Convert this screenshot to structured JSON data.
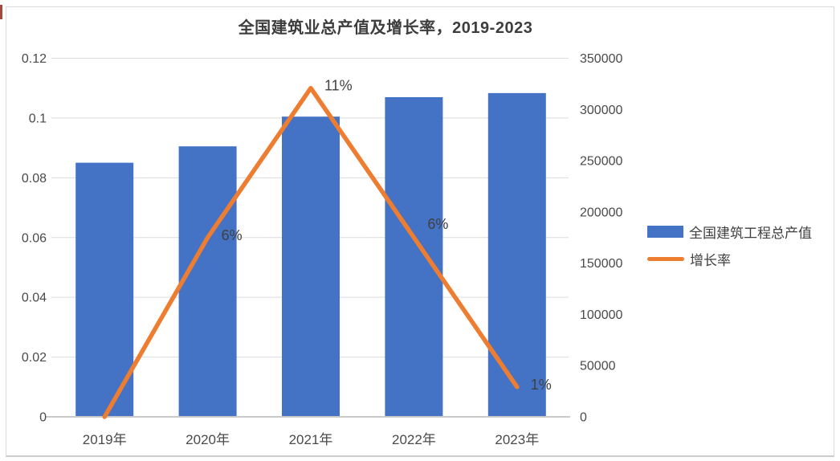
{
  "title": "全国建筑业总产值及增长率，2019-2023",
  "chart_data": {
    "type": "combo-bar-line",
    "categories": [
      "2019年",
      "2020年",
      "2021年",
      "2022年",
      "2023年"
    ],
    "series": [
      {
        "name": "全国建筑工程总产值",
        "chart_type": "bar",
        "axis": "right",
        "color": "#4472C4",
        "values": [
          248000,
          264000,
          293000,
          312000,
          316000
        ]
      },
      {
        "name": "增长率",
        "chart_type": "line",
        "axis": "left",
        "color": "#ED7D31",
        "values": [
          0,
          0.06,
          0.11,
          0.06,
          0.01
        ],
        "point_labels": [
          "",
          "6%",
          "11%",
          "6%",
          "1%"
        ]
      }
    ],
    "left_axis": {
      "min": 0,
      "max": 0.12,
      "step": 0.02,
      "ticks": [
        "0.12",
        "0.1",
        "0.08",
        "0.06",
        "0.04",
        "0.02",
        "0"
      ]
    },
    "right_axis": {
      "min": 0,
      "max": 350000,
      "step": 50000,
      "ticks": [
        "350000",
        "300000",
        "250000",
        "200000",
        "150000",
        "100000",
        "50000",
        "0"
      ]
    },
    "grid": true,
    "legend_position": "right"
  },
  "legend": {
    "items": [
      {
        "label": "全国建筑工程总产值",
        "color": "#4472C4",
        "swatch": "rect"
      },
      {
        "label": "增长率",
        "color": "#ED7D31",
        "swatch": "line"
      }
    ]
  },
  "colors": {
    "bar": "#4472C4",
    "line": "#ED7D31",
    "grid": "#DCDCDC",
    "axis_line": "#C9C9C9",
    "text": "#404040",
    "frame": "#DBDBDB",
    "accent": "#A34A40"
  }
}
